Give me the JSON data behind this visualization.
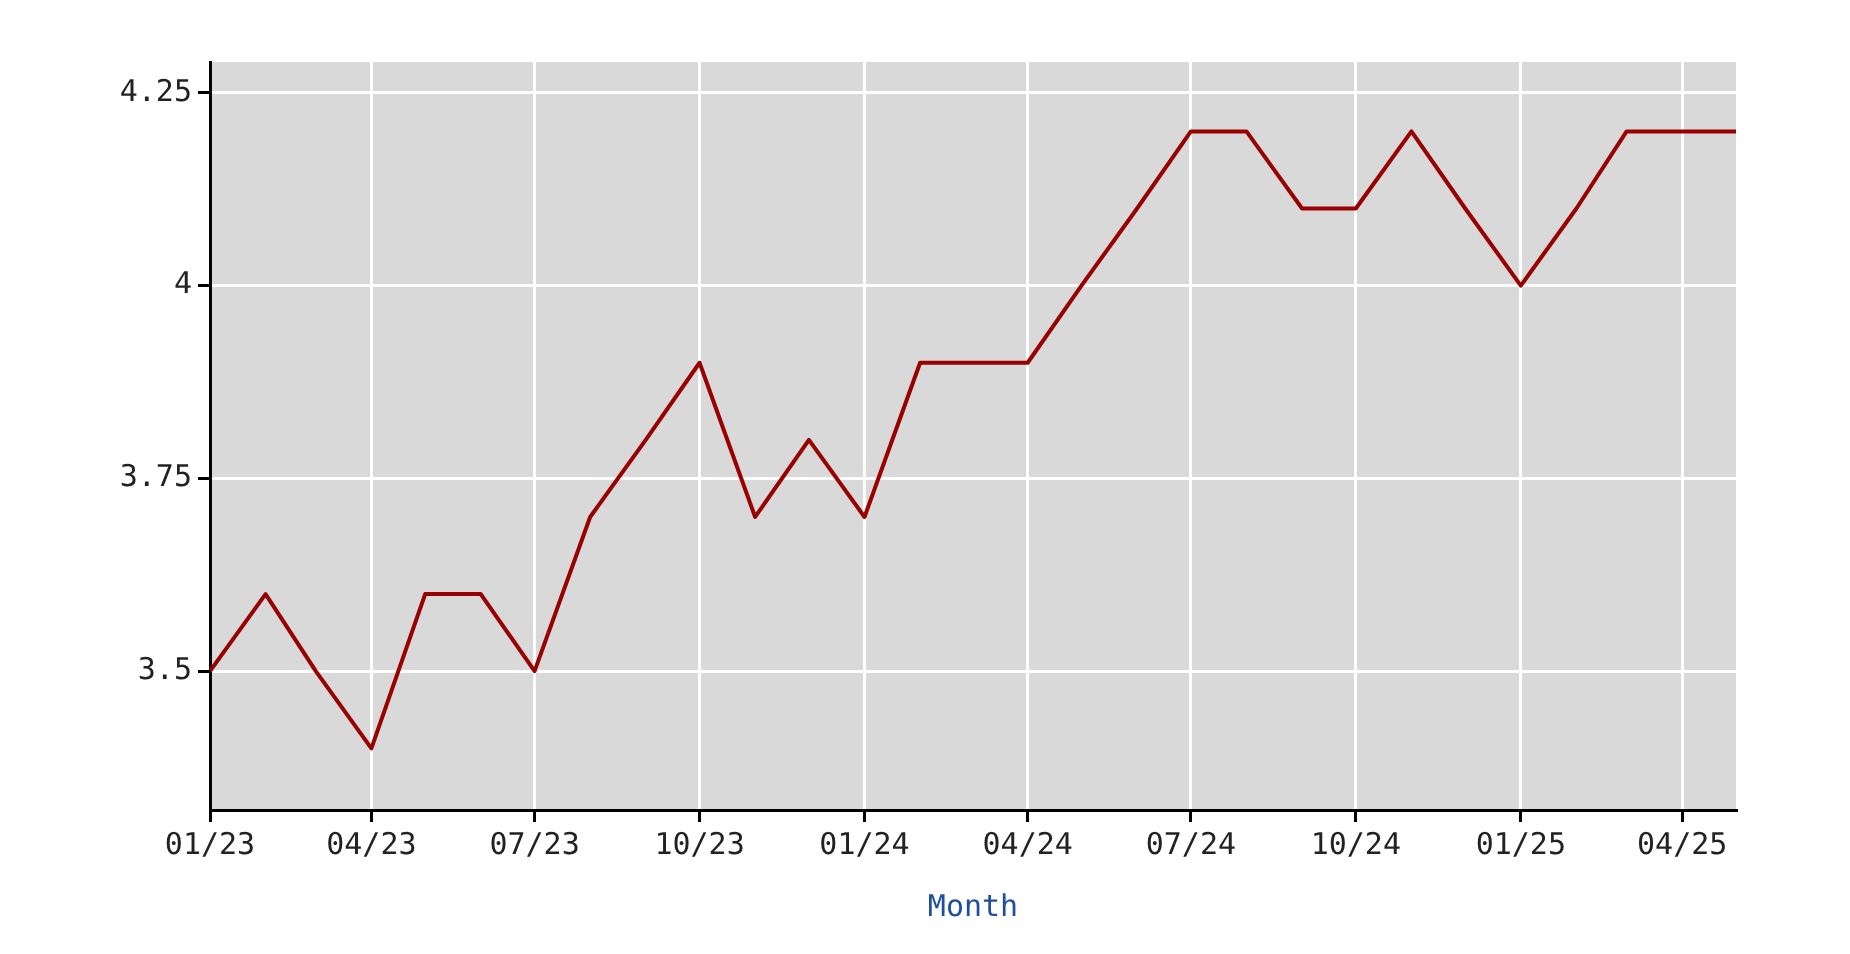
{
  "chart_data": {
    "type": "line",
    "xlabel": "Month",
    "x": [
      "2023-01",
      "2023-02",
      "2023-03",
      "2023-04",
      "2023-05",
      "2023-06",
      "2023-07",
      "2023-08",
      "2023-09",
      "2023-10",
      "2023-11",
      "2023-12",
      "2024-01",
      "2024-02",
      "2024-03",
      "2024-04",
      "2024-05",
      "2024-06",
      "2024-07",
      "2024-08",
      "2024-09",
      "2024-10",
      "2024-11",
      "2024-12",
      "2025-01",
      "2025-02",
      "2025-03",
      "2025-04",
      "2025-05"
    ],
    "series": [
      {
        "color": "#990000",
        "values": [
          3.5,
          3.6,
          3.5,
          3.4,
          3.6,
          3.6,
          3.5,
          3.7,
          3.8,
          3.9,
          3.7,
          3.8,
          3.7,
          3.9,
          3.9,
          3.9,
          4.0,
          4.1,
          4.2,
          4.2,
          4.1,
          4.1,
          4.2,
          4.1,
          4.0,
          4.1,
          4.2,
          4.2,
          4.2
        ]
      }
    ],
    "xlim": [
      "2023-01",
      "2025-05"
    ],
    "xticks": [
      {
        "value": "2023-01",
        "label": "01/23"
      },
      {
        "value": "2023-04",
        "label": "04/23"
      },
      {
        "value": "2023-07",
        "label": "07/23"
      },
      {
        "value": "2023-10",
        "label": "10/23"
      },
      {
        "value": "2024-01",
        "label": "01/24"
      },
      {
        "value": "2024-04",
        "label": "04/24"
      },
      {
        "value": "2024-07",
        "label": "07/24"
      },
      {
        "value": "2024-10",
        "label": "10/24"
      },
      {
        "value": "2025-01",
        "label": "01/25"
      },
      {
        "value": "2025-04",
        "label": "04/25"
      }
    ],
    "ylim": [
      3.32,
      4.29
    ],
    "yticks": [
      3.5,
      3.75,
      4,
      4.25
    ],
    "grid": true,
    "legend": false,
    "marker": "none",
    "line_style": "solid"
  }
}
